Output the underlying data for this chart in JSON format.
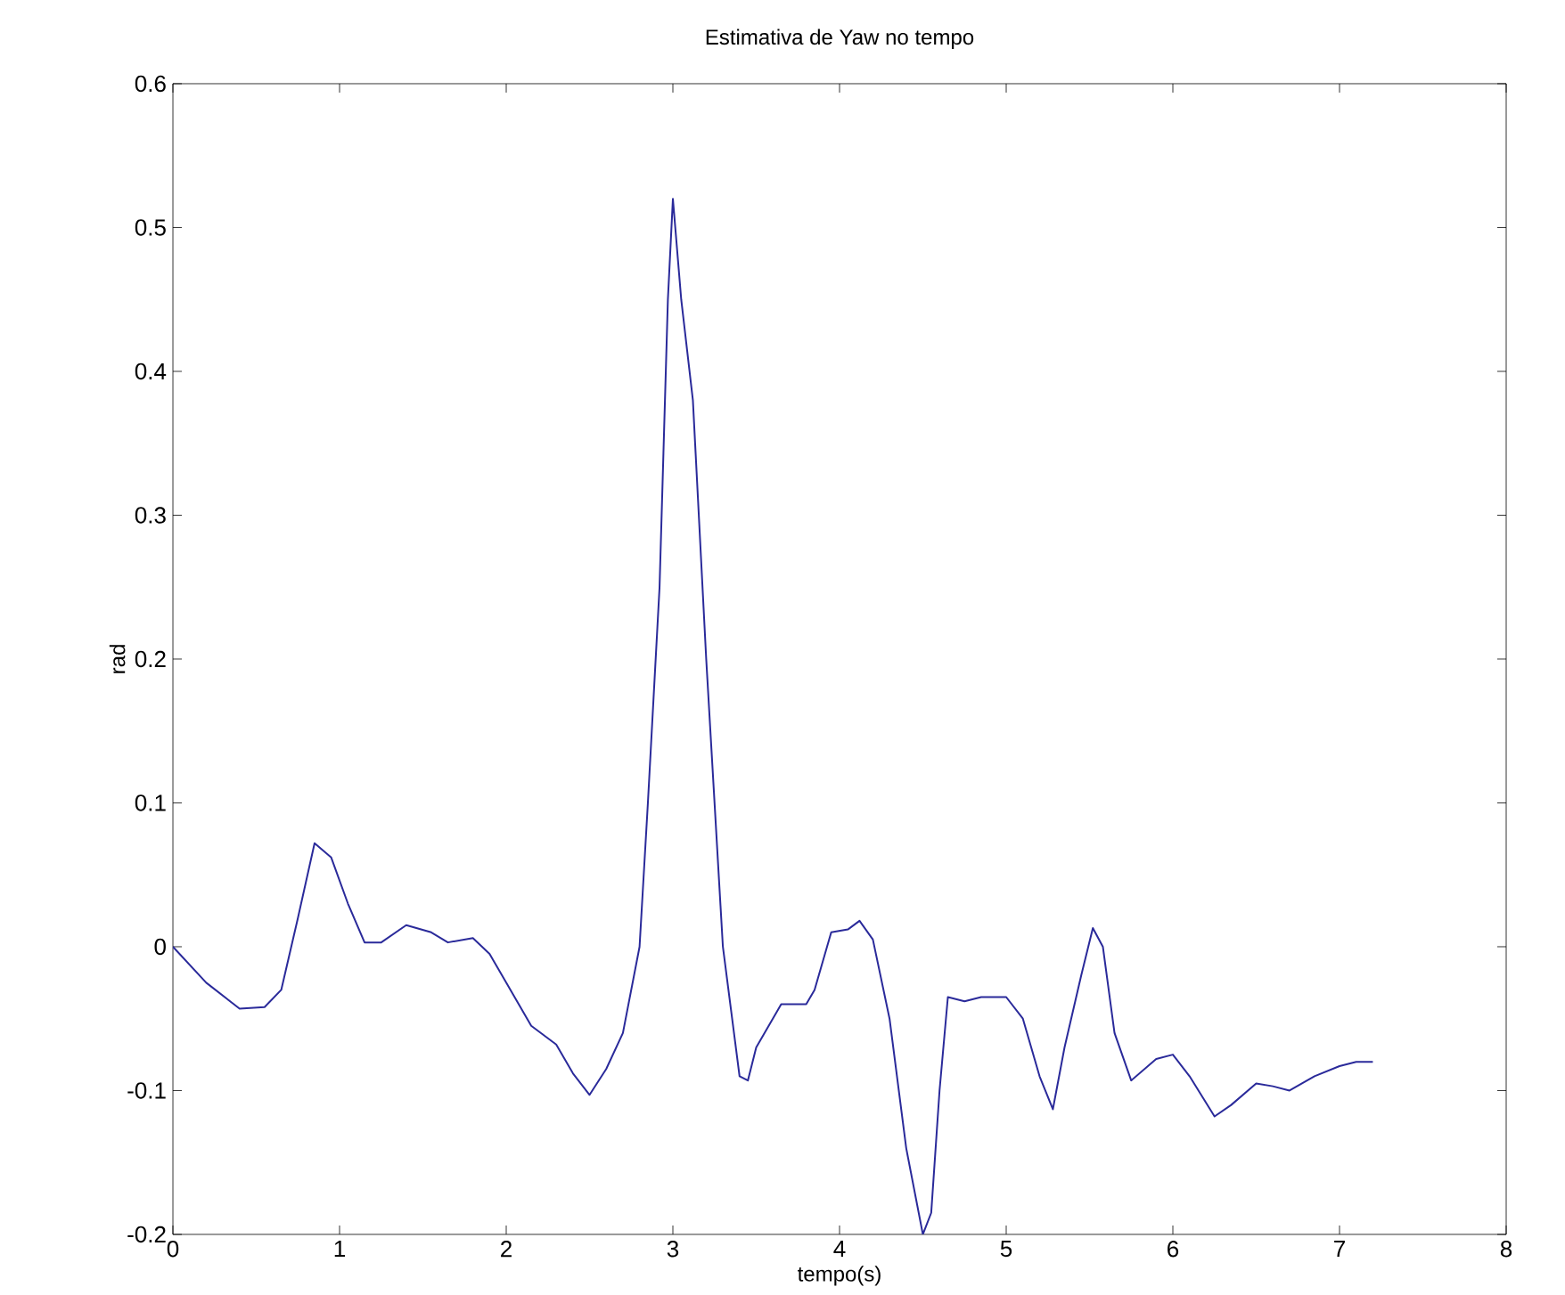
{
  "chart_data": {
    "type": "line",
    "title": "Estimativa de Yaw no tempo",
    "xlabel": "tempo(s)",
    "ylabel": "rad",
    "xlim": [
      0,
      8
    ],
    "ylim": [
      -0.2,
      0.6
    ],
    "xticks": [
      0,
      1,
      2,
      3,
      4,
      5,
      6,
      7,
      8
    ],
    "yticks": [
      -0.2,
      -0.1,
      0,
      0.1,
      0.2,
      0.3,
      0.4,
      0.5,
      0.6
    ],
    "grid": false,
    "series": [
      {
        "color": "#2a2a9a",
        "line_style": "solid",
        "x": [
          0,
          0.2,
          0.4,
          0.55,
          0.65,
          0.75,
          0.85,
          0.95,
          1.05,
          1.15,
          1.25,
          1.4,
          1.55,
          1.65,
          1.8,
          1.9,
          2.0,
          2.15,
          2.3,
          2.4,
          2.5,
          2.6,
          2.7,
          2.8,
          2.85,
          2.92,
          2.97,
          3.0,
          3.05,
          3.12,
          3.2,
          3.3,
          3.4,
          3.45,
          3.5,
          3.65,
          3.8,
          3.85,
          3.95,
          4.05,
          4.12,
          4.2,
          4.3,
          4.4,
          4.5,
          4.55,
          4.6,
          4.65,
          4.75,
          4.85,
          5.0,
          5.1,
          5.2,
          5.28,
          5.35,
          5.45,
          5.52,
          5.58,
          5.65,
          5.75,
          5.9,
          6.0,
          6.1,
          6.25,
          6.35,
          6.5,
          6.6,
          6.7,
          6.85,
          7.0,
          7.1,
          7.2
        ],
        "values": [
          0,
          -0.025,
          -0.043,
          -0.042,
          -0.03,
          0.02,
          0.072,
          0.062,
          0.03,
          0.003,
          0.003,
          0.015,
          0.01,
          0.003,
          0.006,
          -0.005,
          -0.025,
          -0.055,
          -0.068,
          -0.088,
          -0.103,
          -0.085,
          -0.06,
          0.0,
          0.1,
          0.25,
          0.45,
          0.52,
          0.45,
          0.38,
          0.2,
          0.0,
          -0.09,
          -0.093,
          -0.07,
          -0.04,
          -0.04,
          -0.03,
          0.01,
          0.012,
          0.018,
          0.005,
          -0.05,
          -0.14,
          -0.2,
          -0.185,
          -0.1,
          -0.035,
          -0.038,
          -0.035,
          -0.035,
          -0.05,
          -0.09,
          -0.113,
          -0.07,
          -0.02,
          0.013,
          0.0,
          -0.06,
          -0.093,
          -0.078,
          -0.075,
          -0.09,
          -0.118,
          -0.11,
          -0.095,
          -0.097,
          -0.1,
          -0.09,
          -0.083,
          -0.08,
          -0.08
        ]
      }
    ]
  }
}
